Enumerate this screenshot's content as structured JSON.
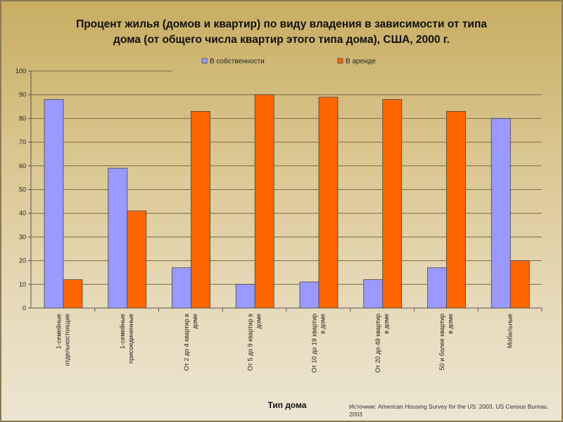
{
  "chart_data": {
    "type": "bar",
    "title_lines": [
      "Процент жилья (домов и квартир) по виду владения в зависимости от типа",
      "дома (от общего числа квартир этого типа дома), США,  2000 г."
    ],
    "xlabel": "Тип дома",
    "ylabel": "",
    "ylim": [
      0,
      100
    ],
    "yticks": [
      0,
      10,
      20,
      30,
      40,
      50,
      60,
      70,
      80,
      90,
      100
    ],
    "grid": true,
    "legend_position": "top",
    "categories": [
      [
        "1-семейные",
        "отдельностоящие"
      ],
      [
        "1-семейные",
        "присоединенные"
      ],
      [
        "От 2 до 4 квартир в",
        "доме"
      ],
      [
        "От 5 до 9 квартир в",
        "доме"
      ],
      [
        "От 10 до 19 квартир",
        "в доме"
      ],
      [
        "От 20 до 49 квартир",
        "в доме"
      ],
      [
        "50 и более квартир",
        "в доме"
      ],
      [
        "Мобильные"
      ]
    ],
    "series": [
      {
        "name": "В собственности",
        "color": "#9999ff",
        "values": [
          88,
          59,
          17,
          10,
          11,
          12,
          17,
          80
        ]
      },
      {
        "name": "В аренде",
        "color": "#ff6600",
        "values": [
          12,
          41,
          83,
          90,
          89,
          88,
          83,
          20
        ]
      }
    ]
  },
  "source": "Источник:  American Housing Survey for the US: 2003. US Census Bureau. 2003"
}
